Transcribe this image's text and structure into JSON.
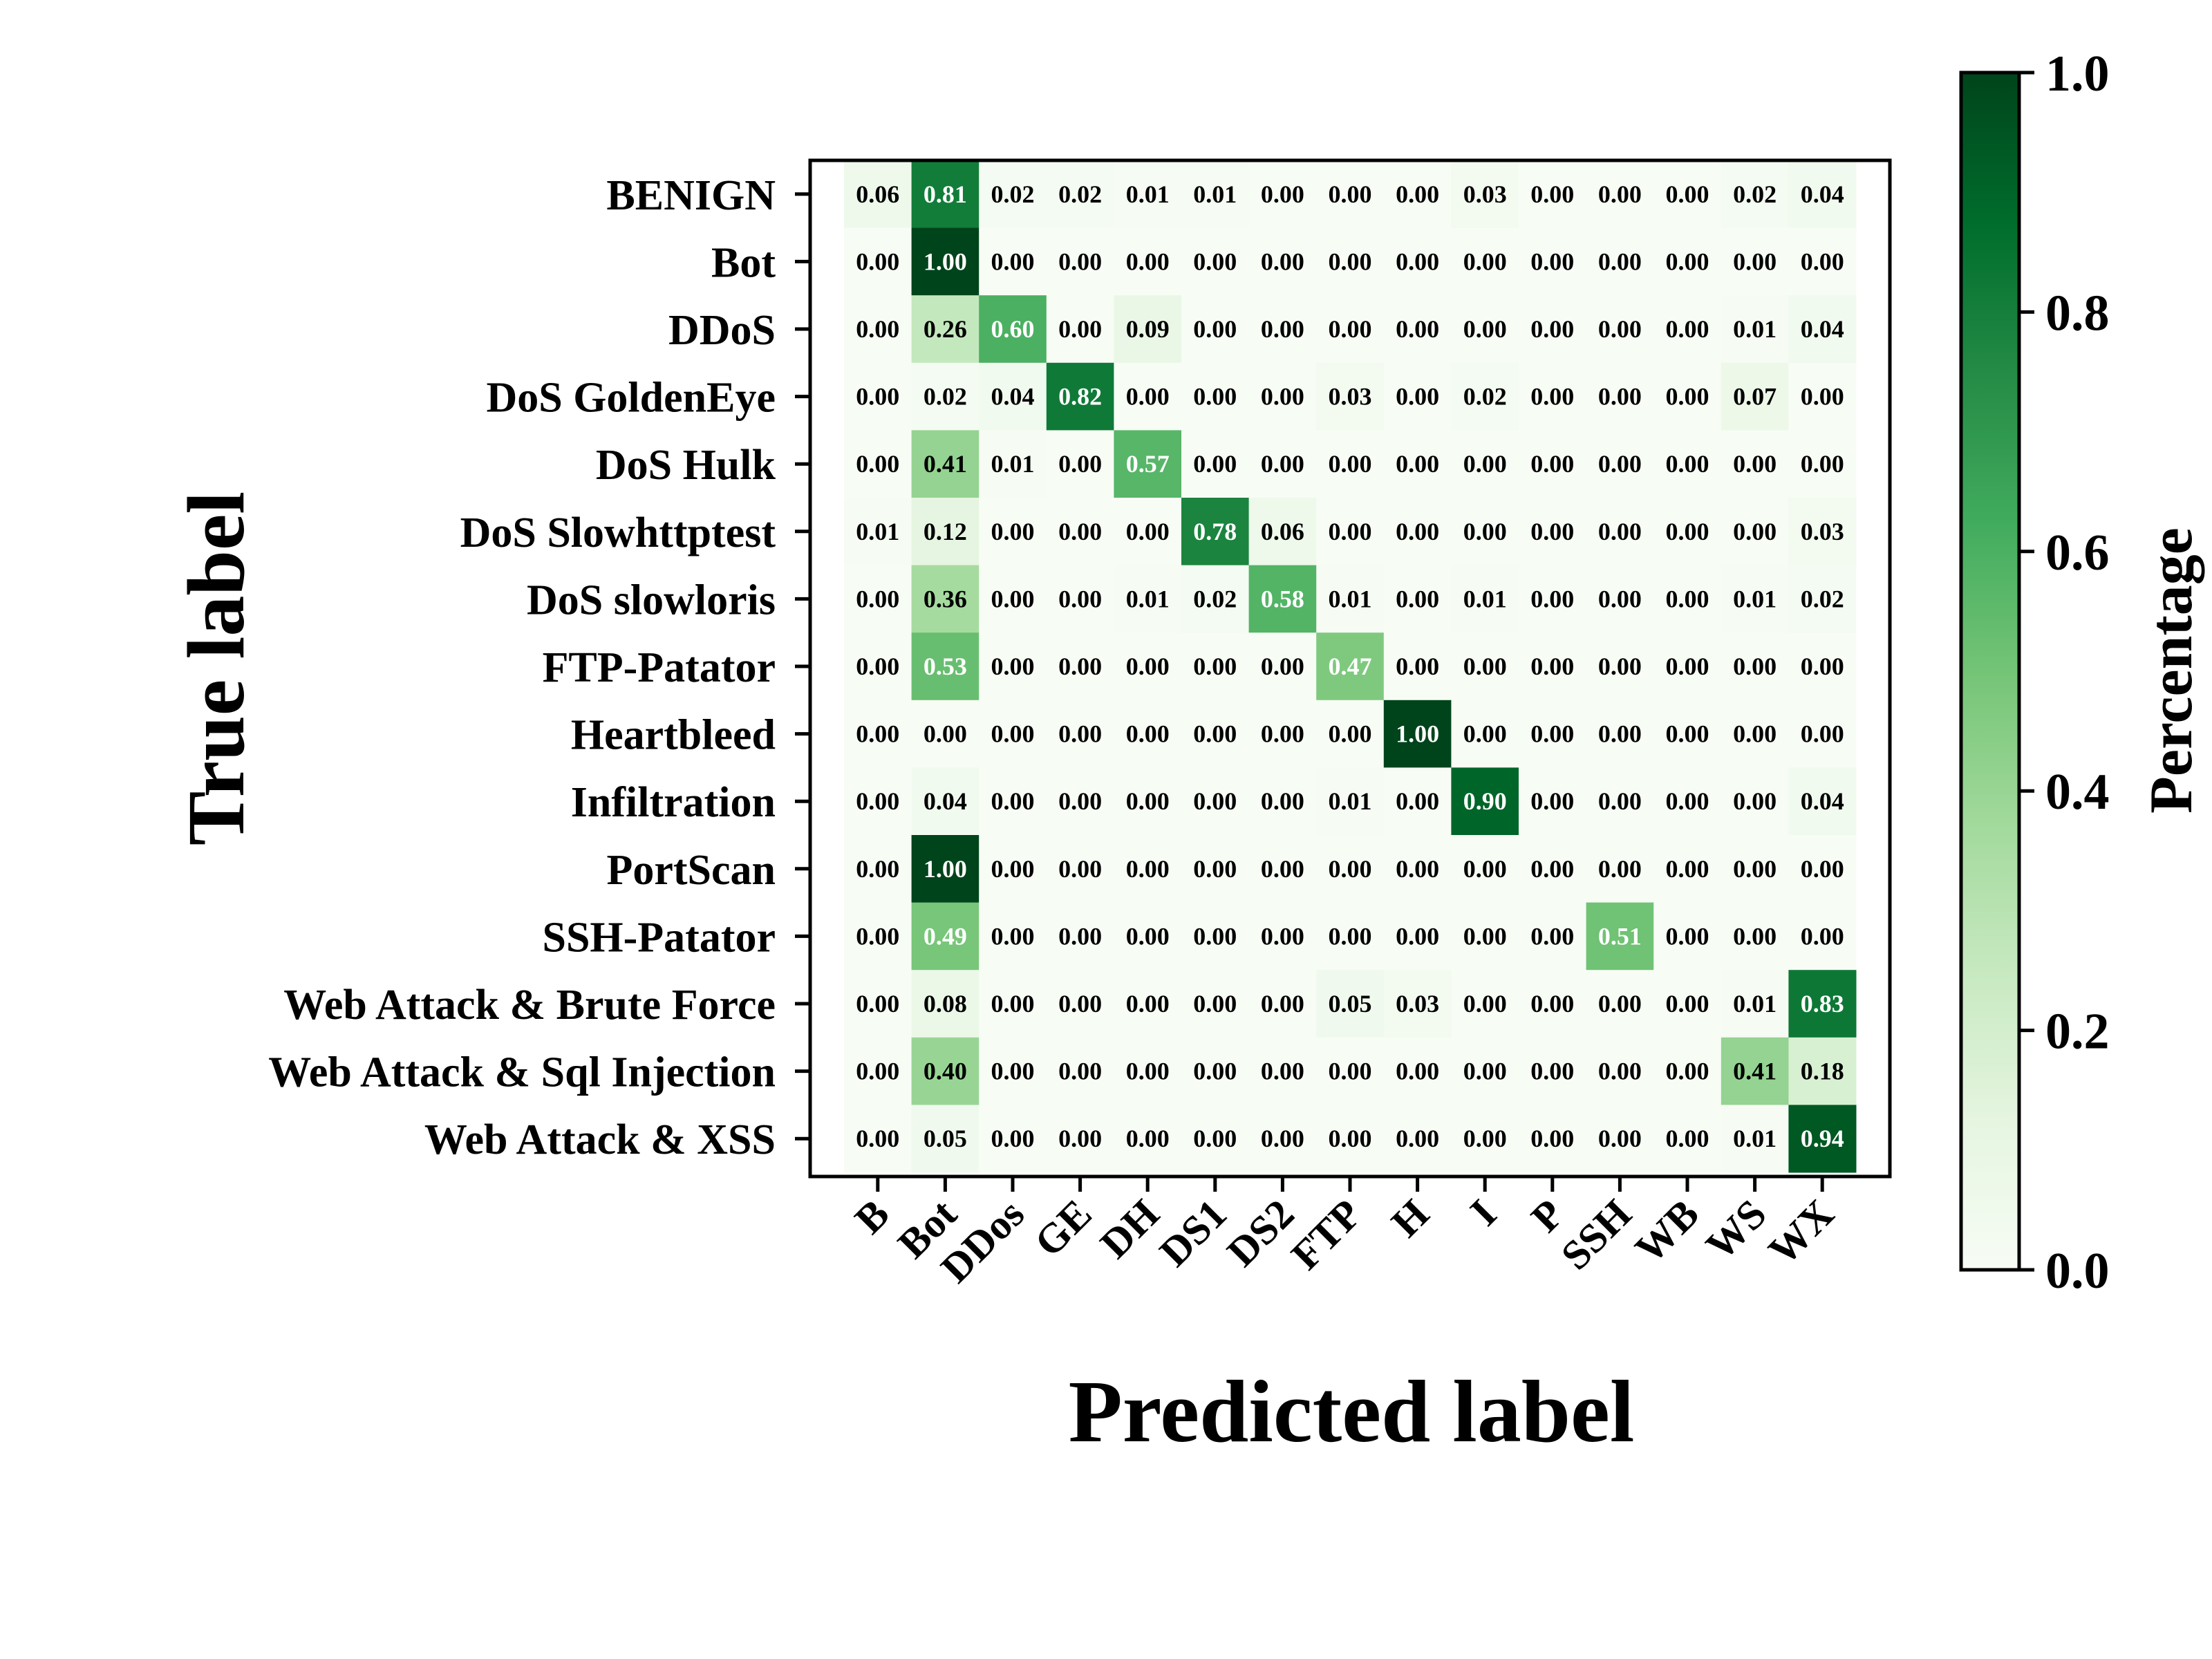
{
  "chart_data": {
    "type": "heatmap",
    "xlabel": "Predicted label",
    "ylabel": "True label",
    "x_categories": [
      "B",
      "Bot",
      "DDos",
      "GE",
      "DH",
      "DS1",
      "DS2",
      "FTP",
      "H",
      "I",
      "P",
      "SSH",
      "WB",
      "WS",
      "WX"
    ],
    "y_categories": [
      "BENIGN",
      "Bot",
      "DDoS",
      "DoS GoldenEye",
      "DoS Hulk",
      "DoS Slowhttptest",
      "DoS slowloris",
      "FTP-Patator",
      "Heartbleed",
      "Infiltration",
      "PortScan",
      "SSH-Patator",
      "Web Attack & Brute Force",
      "Web Attack & Sql Injection",
      "Web Attack & XSS"
    ],
    "values": [
      [
        0.06,
        0.81,
        0.02,
        0.02,
        0.01,
        0.01,
        0.0,
        0.0,
        0.0,
        0.03,
        0.0,
        0.0,
        0.0,
        0.02,
        0.04
      ],
      [
        0.0,
        1.0,
        0.0,
        0.0,
        0.0,
        0.0,
        0.0,
        0.0,
        0.0,
        0.0,
        0.0,
        0.0,
        0.0,
        0.0,
        0.0
      ],
      [
        0.0,
        0.26,
        0.6,
        0.0,
        0.09,
        0.0,
        0.0,
        0.0,
        0.0,
        0.0,
        0.0,
        0.0,
        0.0,
        0.01,
        0.04
      ],
      [
        0.0,
        0.02,
        0.04,
        0.82,
        0.0,
        0.0,
        0.0,
        0.03,
        0.0,
        0.02,
        0.0,
        0.0,
        0.0,
        0.07,
        0.0
      ],
      [
        0.0,
        0.41,
        0.01,
        0.0,
        0.57,
        0.0,
        0.0,
        0.0,
        0.0,
        0.0,
        0.0,
        0.0,
        0.0,
        0.0,
        0.0
      ],
      [
        0.01,
        0.12,
        0.0,
        0.0,
        0.0,
        0.78,
        0.06,
        0.0,
        0.0,
        0.0,
        0.0,
        0.0,
        0.0,
        0.0,
        0.03
      ],
      [
        0.0,
        0.36,
        0.0,
        0.0,
        0.01,
        0.02,
        0.58,
        0.01,
        0.0,
        0.01,
        0.0,
        0.0,
        0.0,
        0.01,
        0.02
      ],
      [
        0.0,
        0.53,
        0.0,
        0.0,
        0.0,
        0.0,
        0.0,
        0.47,
        0.0,
        0.0,
        0.0,
        0.0,
        0.0,
        0.0,
        0.0
      ],
      [
        0.0,
        0.0,
        0.0,
        0.0,
        0.0,
        0.0,
        0.0,
        0.0,
        1.0,
        0.0,
        0.0,
        0.0,
        0.0,
        0.0,
        0.0
      ],
      [
        0.0,
        0.04,
        0.0,
        0.0,
        0.0,
        0.0,
        0.0,
        0.01,
        0.0,
        0.9,
        0.0,
        0.0,
        0.0,
        0.0,
        0.04
      ],
      [
        0.0,
        1.0,
        0.0,
        0.0,
        0.0,
        0.0,
        0.0,
        0.0,
        0.0,
        0.0,
        0.0,
        0.0,
        0.0,
        0.0,
        0.0
      ],
      [
        0.0,
        0.49,
        0.0,
        0.0,
        0.0,
        0.0,
        0.0,
        0.0,
        0.0,
        0.0,
        0.0,
        0.51,
        0.0,
        0.0,
        0.0
      ],
      [
        0.0,
        0.08,
        0.0,
        0.0,
        0.0,
        0.0,
        0.0,
        0.05,
        0.03,
        0.0,
        0.0,
        0.0,
        0.0,
        0.01,
        0.83
      ],
      [
        0.0,
        0.4,
        0.0,
        0.0,
        0.0,
        0.0,
        0.0,
        0.0,
        0.0,
        0.0,
        0.0,
        0.0,
        0.0,
        0.41,
        0.18
      ],
      [
        0.0,
        0.05,
        0.0,
        0.0,
        0.0,
        0.0,
        0.0,
        0.0,
        0.0,
        0.0,
        0.0,
        0.0,
        0.0,
        0.01,
        0.94
      ]
    ],
    "colorbar": {
      "label": "Percentage",
      "range": [
        0.0,
        1.0
      ],
      "ticks": [
        "0.0",
        "0.2",
        "0.4",
        "0.6",
        "0.8",
        "1.0"
      ],
      "colormap": "Greens",
      "color_low": "#f7fcf5",
      "color_high": "#00441b"
    }
  }
}
